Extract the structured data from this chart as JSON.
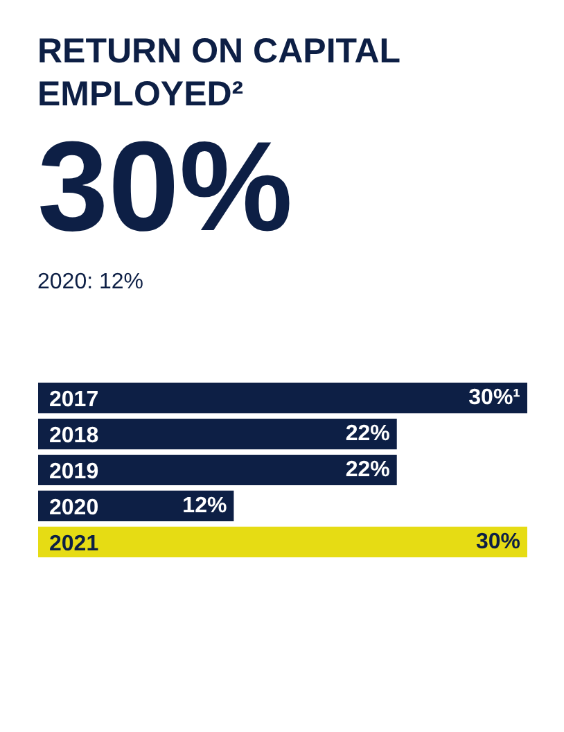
{
  "chart_data": {
    "type": "bar",
    "orientation": "horizontal",
    "title": "RETURN ON CAPITAL EMPLOYED²",
    "annotations": [
      "30%",
      "2020: 12%"
    ],
    "categories": [
      "2017",
      "2018",
      "2019",
      "2020",
      "2021"
    ],
    "values": [
      30,
      22,
      22,
      12,
      30
    ],
    "colors": [
      "#0d1f45",
      "#0d1f45",
      "#0d1f45",
      "#0d1f45",
      "#e6dc14"
    ],
    "value_labels": [
      "30%¹",
      "22%",
      "22%",
      "12%",
      "30%"
    ]
  }
}
